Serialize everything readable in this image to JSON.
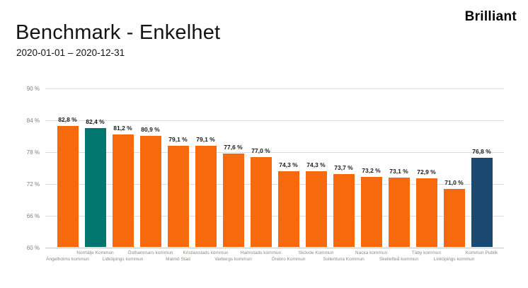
{
  "page": {
    "logo": "Brilliant",
    "title": "Benchmark - Enkelhet",
    "subtitle": "2020-01-01 – 2020-12-31"
  },
  "chart_data": {
    "type": "bar",
    "title": "Benchmark - Enkelhet",
    "period": "2020-01-01 – 2020-12-31",
    "categories": [
      "Ängelholms kommun",
      "Norrtälje Kommun",
      "Lidköpings kommun",
      "Östhammars kommun",
      "Malmö Stad",
      "Kristianstads kommun",
      "Varbergs kommun",
      "Halmstads kommun",
      "Örebro Kommun",
      "Skövde Kommun",
      "Sollentuna Kommun",
      "Nacka kommun",
      "Skellefteå kommun",
      "Täby kommun",
      "Linköpings kommun",
      "Kommun Publik"
    ],
    "values": [
      82.8,
      82.4,
      81.2,
      80.9,
      79.1,
      79.1,
      77.6,
      77.0,
      74.3,
      74.3,
      73.7,
      73.2,
      73.1,
      72.9,
      71.0,
      76.8
    ],
    "value_labels": [
      "82,8 %",
      "82,4 %",
      "81,2 %",
      "80,9 %",
      "79,1 %",
      "79,1 %",
      "77,6 %",
      "77,0 %",
      "74,3 %",
      "74,3 %",
      "73,7 %",
      "73,2 %",
      "73,1 %",
      "72,9 %",
      "71,0 %",
      "76,8 %"
    ],
    "colors": [
      "#F6690D",
      "#00766F",
      "#F6690D",
      "#F6690D",
      "#F6690D",
      "#F6690D",
      "#F6690D",
      "#F6690D",
      "#F6690D",
      "#F6690D",
      "#F6690D",
      "#F6690D",
      "#F6690D",
      "#F6690D",
      "#F6690D",
      "#1B4870"
    ],
    "default_color": "#F6690D",
    "highlight_color": "#00766F",
    "benchmark_color": "#1B4870",
    "ylim": [
      60,
      90
    ],
    "yticks": [
      {
        "value": 90,
        "label": "90 %"
      },
      {
        "value": 84,
        "label": "84 %"
      },
      {
        "value": 78,
        "label": "78 %"
      },
      {
        "value": 72,
        "label": "72 %"
      },
      {
        "value": 66,
        "label": "66 %"
      },
      {
        "value": 60,
        "label": "60 %"
      }
    ],
    "grid": true,
    "legend": false,
    "xlabel": "",
    "ylabel": ""
  }
}
